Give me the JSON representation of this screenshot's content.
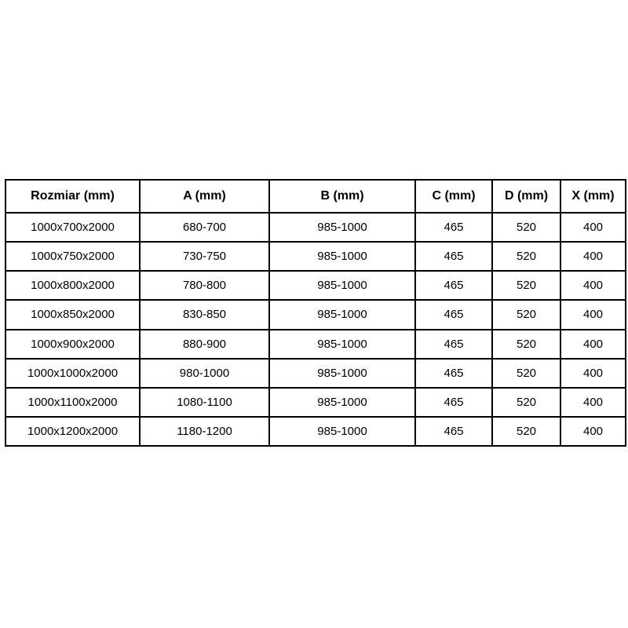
{
  "chart_data": {
    "type": "table",
    "title": "",
    "columns": [
      "Rozmiar (mm)",
      "A (mm)",
      "B (mm)",
      "C (mm)",
      "D (mm)",
      "X (mm)"
    ],
    "rows": [
      [
        "1000x700x2000",
        "680-700",
        "985-1000",
        "465",
        "520",
        "400"
      ],
      [
        "1000x750x2000",
        "730-750",
        "985-1000",
        "465",
        "520",
        "400"
      ],
      [
        "1000x800x2000",
        "780-800",
        "985-1000",
        "465",
        "520",
        "400"
      ],
      [
        "1000x850x2000",
        "830-850",
        "985-1000",
        "465",
        "520",
        "400"
      ],
      [
        "1000x900x2000",
        "880-900",
        "985-1000",
        "465",
        "520",
        "400"
      ],
      [
        "1000x1000x2000",
        "980-1000",
        "985-1000",
        "465",
        "520",
        "400"
      ],
      [
        "1000x1100x2000",
        "1080-1100",
        "985-1000",
        "465",
        "520",
        "400"
      ],
      [
        "1000x1200x2000",
        "1180-1200",
        "985-1000",
        "465",
        "520",
        "400"
      ]
    ],
    "colors": {
      "border": "#000000",
      "text": "#000000",
      "background": "#ffffff"
    }
  }
}
